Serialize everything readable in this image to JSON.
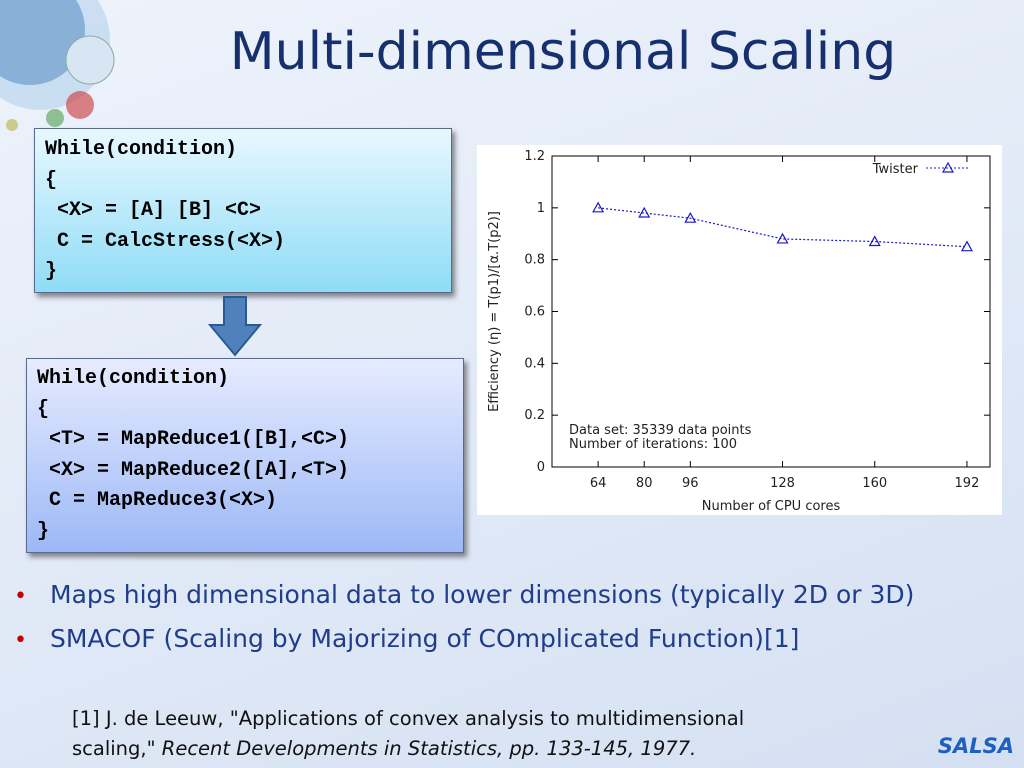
{
  "title": "Multi-dimensional Scaling",
  "code_box_1": {
    "lines": [
      "While(condition)",
      "{",
      " <X> = [A] [B] <C>",
      " C = CalcStress(<X>)",
      "}"
    ]
  },
  "code_box_2": {
    "lines": [
      "While(condition)",
      "{",
      " <T> = MapReduce1([B],<C>)",
      " <X> = MapReduce2([A],<T>)",
      " C = MapReduce3(<X>)",
      "}"
    ]
  },
  "bullets": [
    "Maps high dimensional data to lower dimensions (typically 2D or 3D)",
    "SMACOF (Scaling by Majorizing of COmplicated Function)[1]"
  ],
  "reference": {
    "line1": "[1] J. de Leeuw, \"Applications of convex analysis to multidimensional",
    "line2": "scaling,\"",
    "line2_italic": "Recent Developments in Statistics, pp. 133-145, 1977."
  },
  "logo": "SALSA",
  "chart_data": {
    "type": "line",
    "x": [
      64,
      80,
      96,
      128,
      160,
      192
    ],
    "series": [
      {
        "name": "Twister",
        "color": "#1a1acc",
        "values": [
          1.0,
          0.98,
          0.96,
          0.88,
          0.87,
          0.85
        ]
      }
    ],
    "xlim": [
      48,
      200
    ],
    "xticks": [
      64,
      80,
      96,
      128,
      160,
      192
    ],
    "ylim": [
      0,
      1.2
    ],
    "yticks": [
      0,
      0.2,
      0.4,
      0.6,
      0.8,
      1,
      1.2
    ],
    "x_label": "Number of CPU cores",
    "y_label": "Efficiency (η) = T(p1)/[α.T(p2)]",
    "annotations": [
      "Data set: 35339 data points",
      "Number of iterations: 100"
    ],
    "legend": "top-right",
    "marker": "triangle",
    "line_style": "dotted"
  }
}
